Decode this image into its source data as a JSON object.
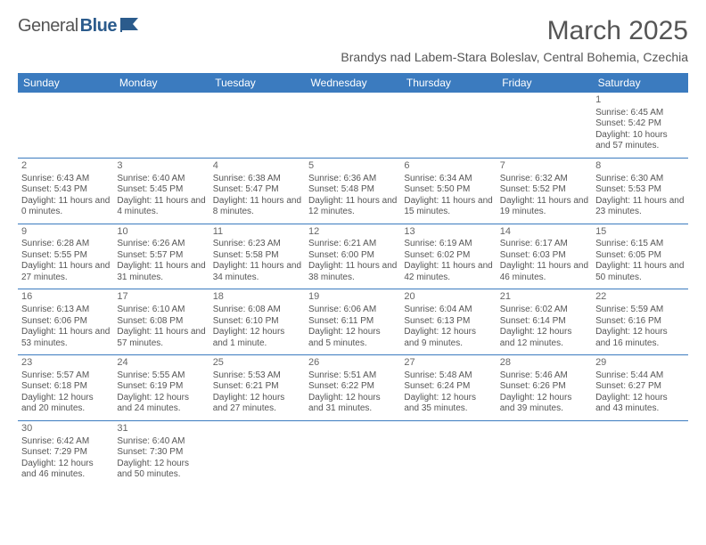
{
  "logo": {
    "text1": "General",
    "text2": "Blue"
  },
  "title": "March 2025",
  "location": "Brandys nad Labem-Stara Boleslav, Central Bohemia, Czechia",
  "colors": {
    "header_bg": "#3b7bbf",
    "header_text": "#ffffff",
    "border": "#3b7bbf",
    "body_text": "#555555",
    "logo_blue": "#2b5b8c"
  },
  "day_headers": [
    "Sunday",
    "Monday",
    "Tuesday",
    "Wednesday",
    "Thursday",
    "Friday",
    "Saturday"
  ],
  "weeks": [
    [
      null,
      null,
      null,
      null,
      null,
      null,
      {
        "n": "1",
        "sr": "Sunrise: 6:45 AM",
        "ss": "Sunset: 5:42 PM",
        "dl": "Daylight: 10 hours and 57 minutes."
      }
    ],
    [
      {
        "n": "2",
        "sr": "Sunrise: 6:43 AM",
        "ss": "Sunset: 5:43 PM",
        "dl": "Daylight: 11 hours and 0 minutes."
      },
      {
        "n": "3",
        "sr": "Sunrise: 6:40 AM",
        "ss": "Sunset: 5:45 PM",
        "dl": "Daylight: 11 hours and 4 minutes."
      },
      {
        "n": "4",
        "sr": "Sunrise: 6:38 AM",
        "ss": "Sunset: 5:47 PM",
        "dl": "Daylight: 11 hours and 8 minutes."
      },
      {
        "n": "5",
        "sr": "Sunrise: 6:36 AM",
        "ss": "Sunset: 5:48 PM",
        "dl": "Daylight: 11 hours and 12 minutes."
      },
      {
        "n": "6",
        "sr": "Sunrise: 6:34 AM",
        "ss": "Sunset: 5:50 PM",
        "dl": "Daylight: 11 hours and 15 minutes."
      },
      {
        "n": "7",
        "sr": "Sunrise: 6:32 AM",
        "ss": "Sunset: 5:52 PM",
        "dl": "Daylight: 11 hours and 19 minutes."
      },
      {
        "n": "8",
        "sr": "Sunrise: 6:30 AM",
        "ss": "Sunset: 5:53 PM",
        "dl": "Daylight: 11 hours and 23 minutes."
      }
    ],
    [
      {
        "n": "9",
        "sr": "Sunrise: 6:28 AM",
        "ss": "Sunset: 5:55 PM",
        "dl": "Daylight: 11 hours and 27 minutes."
      },
      {
        "n": "10",
        "sr": "Sunrise: 6:26 AM",
        "ss": "Sunset: 5:57 PM",
        "dl": "Daylight: 11 hours and 31 minutes."
      },
      {
        "n": "11",
        "sr": "Sunrise: 6:23 AM",
        "ss": "Sunset: 5:58 PM",
        "dl": "Daylight: 11 hours and 34 minutes."
      },
      {
        "n": "12",
        "sr": "Sunrise: 6:21 AM",
        "ss": "Sunset: 6:00 PM",
        "dl": "Daylight: 11 hours and 38 minutes."
      },
      {
        "n": "13",
        "sr": "Sunrise: 6:19 AM",
        "ss": "Sunset: 6:02 PM",
        "dl": "Daylight: 11 hours and 42 minutes."
      },
      {
        "n": "14",
        "sr": "Sunrise: 6:17 AM",
        "ss": "Sunset: 6:03 PM",
        "dl": "Daylight: 11 hours and 46 minutes."
      },
      {
        "n": "15",
        "sr": "Sunrise: 6:15 AM",
        "ss": "Sunset: 6:05 PM",
        "dl": "Daylight: 11 hours and 50 minutes."
      }
    ],
    [
      {
        "n": "16",
        "sr": "Sunrise: 6:13 AM",
        "ss": "Sunset: 6:06 PM",
        "dl": "Daylight: 11 hours and 53 minutes."
      },
      {
        "n": "17",
        "sr": "Sunrise: 6:10 AM",
        "ss": "Sunset: 6:08 PM",
        "dl": "Daylight: 11 hours and 57 minutes."
      },
      {
        "n": "18",
        "sr": "Sunrise: 6:08 AM",
        "ss": "Sunset: 6:10 PM",
        "dl": "Daylight: 12 hours and 1 minute."
      },
      {
        "n": "19",
        "sr": "Sunrise: 6:06 AM",
        "ss": "Sunset: 6:11 PM",
        "dl": "Daylight: 12 hours and 5 minutes."
      },
      {
        "n": "20",
        "sr": "Sunrise: 6:04 AM",
        "ss": "Sunset: 6:13 PM",
        "dl": "Daylight: 12 hours and 9 minutes."
      },
      {
        "n": "21",
        "sr": "Sunrise: 6:02 AM",
        "ss": "Sunset: 6:14 PM",
        "dl": "Daylight: 12 hours and 12 minutes."
      },
      {
        "n": "22",
        "sr": "Sunrise: 5:59 AM",
        "ss": "Sunset: 6:16 PM",
        "dl": "Daylight: 12 hours and 16 minutes."
      }
    ],
    [
      {
        "n": "23",
        "sr": "Sunrise: 5:57 AM",
        "ss": "Sunset: 6:18 PM",
        "dl": "Daylight: 12 hours and 20 minutes."
      },
      {
        "n": "24",
        "sr": "Sunrise: 5:55 AM",
        "ss": "Sunset: 6:19 PM",
        "dl": "Daylight: 12 hours and 24 minutes."
      },
      {
        "n": "25",
        "sr": "Sunrise: 5:53 AM",
        "ss": "Sunset: 6:21 PM",
        "dl": "Daylight: 12 hours and 27 minutes."
      },
      {
        "n": "26",
        "sr": "Sunrise: 5:51 AM",
        "ss": "Sunset: 6:22 PM",
        "dl": "Daylight: 12 hours and 31 minutes."
      },
      {
        "n": "27",
        "sr": "Sunrise: 5:48 AM",
        "ss": "Sunset: 6:24 PM",
        "dl": "Daylight: 12 hours and 35 minutes."
      },
      {
        "n": "28",
        "sr": "Sunrise: 5:46 AM",
        "ss": "Sunset: 6:26 PM",
        "dl": "Daylight: 12 hours and 39 minutes."
      },
      {
        "n": "29",
        "sr": "Sunrise: 5:44 AM",
        "ss": "Sunset: 6:27 PM",
        "dl": "Daylight: 12 hours and 43 minutes."
      }
    ],
    [
      {
        "n": "30",
        "sr": "Sunrise: 6:42 AM",
        "ss": "Sunset: 7:29 PM",
        "dl": "Daylight: 12 hours and 46 minutes."
      },
      {
        "n": "31",
        "sr": "Sunrise: 6:40 AM",
        "ss": "Sunset: 7:30 PM",
        "dl": "Daylight: 12 hours and 50 minutes."
      },
      null,
      null,
      null,
      null,
      null
    ]
  ]
}
